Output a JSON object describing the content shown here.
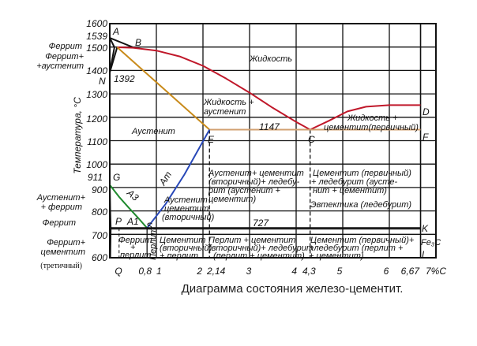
{
  "caption": "Диаграмма состояния железо-цементит.",
  "y_axis_label": "Температура, °С",
  "y_ticks": [
    "1600",
    "1539",
    "1500",
    "1400",
    "1300",
    "1200",
    "1100",
    "1000",
    "911",
    "900",
    "800",
    "700",
    "600"
  ],
  "x_ticks": [
    "Q",
    "0,8",
    "1",
    "2",
    "2,14",
    "3",
    "4",
    "4,3",
    "5",
    "6",
    "6,67",
    "7%C"
  ],
  "points": {
    "A": "A",
    "B": "B",
    "N": "N",
    "E": "E",
    "C": "C",
    "D": "D",
    "F": "F",
    "G": "G",
    "P": "P",
    "S": "S",
    "K": "K",
    "L": "L",
    "Fe3C": "Fe₃C"
  },
  "temps": {
    "t1392": "1392",
    "t1147": "1147",
    "t727": "727"
  },
  "lines": {
    "A3": "A3",
    "A1": "A1",
    "Am": "Am"
  },
  "left_labels": {
    "ferrite_top": "Феррит",
    "ferrite_aust_1": "Феррит+",
    "ferrite_aust_2": "+аустенит",
    "aust_ferr_1": "Аустенит+",
    "aust_ferr_2": "+ феррит",
    "ferrite": "Феррит",
    "ferr_cem_1": "Феррит+",
    "ferr_cem_2": "цементит",
    "ferr_cem_3": "(третичный)"
  },
  "regions": {
    "liquid": "Жидкость",
    "liq_aust_1": "Жидкость +",
    "liq_aust_2": "аустенит",
    "austenite": "Аустенит",
    "liq_cem_1": "Жидкость +",
    "liq_cem_2": "цементит(первичный)",
    "aust_cem2_1": "Аустенит",
    "aust_cem2_2": "цементит",
    "aust_cem2_3": "(вторичный)",
    "aust_led_1": "Аустенит+ цементит",
    "aust_led_2": "(вторичный)+ ледебу-",
    "aust_led_3": "рит (аустенит +",
    "aust_led_4": "цементит)",
    "cem1_led_1": "Цементит (первичный)",
    "cem1_led_2": "+ ледебурит (аусте-",
    "cem1_led_3": "нит + цементит)",
    "eutectic": "Эвтектика (ледебурит)",
    "ferr_perl_1": "Феррит",
    "ferr_perl_2": "+",
    "ferr_perl_3": "перлит",
    "pearlite": "Перлит",
    "cem2_perl_1": "Цементит",
    "cem2_perl_2": "(вторичный)",
    "cem2_perl_3": "+ перлит",
    "perl_led_1": "Перлит + цементит",
    "perl_led_2": "(вторичный)+ ледебурит",
    "perl_led_3": "(перлит + цементит)",
    "cem1_ledp_1": "Цементит (первичный)+",
    "cem1_ledp_2": "+ледебурит (перлит +",
    "cem1_ledp_3": "+ цементит)"
  },
  "chart_data": {
    "type": "phase-diagram",
    "xlabel": "%C",
    "ylabel": "Температура, °С",
    "xlim": [
      0,
      7
    ],
    "ylim": [
      600,
      1600
    ],
    "grid": true,
    "curves": [
      {
        "id": "AB",
        "color": "#111111",
        "pts": [
          [
            0,
            1539
          ],
          [
            0.5,
            1499
          ]
        ]
      },
      {
        "id": "AH",
        "color": "#111111",
        "pts": [
          [
            0,
            1539
          ],
          [
            0.1,
            1499
          ]
        ]
      },
      {
        "id": "HN",
        "color": "#111111",
        "pts": [
          [
            0.1,
            1499
          ],
          [
            0,
            1392
          ]
        ]
      },
      {
        "id": "JN",
        "color": "#111111",
        "pts": [
          [
            0.16,
            1499
          ],
          [
            0,
            1392
          ]
        ]
      },
      {
        "id": "BC",
        "color": "#c0182a",
        "pts": [
          [
            0.16,
            1499
          ],
          [
            0.5,
            1497
          ],
          [
            1,
            1485
          ],
          [
            1.5,
            1460
          ],
          [
            2,
            1420
          ],
          [
            2.5,
            1365
          ],
          [
            3,
            1305
          ],
          [
            3.5,
            1240
          ],
          [
            4,
            1180
          ],
          [
            4.3,
            1147
          ]
        ]
      },
      {
        "id": "CD",
        "color": "#c0182a",
        "pts": [
          [
            4.3,
            1147
          ],
          [
            4.7,
            1185
          ],
          [
            5.1,
            1225
          ],
          [
            5.5,
            1245
          ],
          [
            6,
            1252
          ],
          [
            6.67,
            1252
          ]
        ]
      },
      {
        "id": "JE",
        "color": "#c88a1a",
        "pts": [
          [
            0.16,
            1499
          ],
          [
            2.14,
            1147
          ]
        ]
      },
      {
        "id": "EF",
        "color": "#d2a070",
        "pts": [
          [
            2.14,
            1147
          ],
          [
            6.67,
            1147
          ]
        ]
      },
      {
        "id": "GS",
        "color": "#1f8a2e",
        "pts": [
          [
            0,
            911
          ],
          [
            0.2,
            860
          ],
          [
            0.4,
            815
          ],
          [
            0.6,
            772
          ],
          [
            0.8,
            727
          ]
        ]
      },
      {
        "id": "SE",
        "color": "#2848b8",
        "pts": [
          [
            0.8,
            727
          ],
          [
            1.2,
            830
          ],
          [
            1.6,
            955
          ],
          [
            2.14,
            1147
          ]
        ]
      },
      {
        "id": "GP",
        "color": "#111111",
        "pts": [
          [
            0,
            911
          ],
          [
            0.01,
            800
          ],
          [
            0.02,
            727
          ]
        ]
      },
      {
        "id": "PQ",
        "color": "#111111",
        "pts": [
          [
            0.02,
            727
          ],
          [
            0.01,
            600
          ]
        ]
      },
      {
        "id": "PSK",
        "color": "#111111",
        "pts": [
          [
            0.02,
            727
          ],
          [
            6.67,
            727
          ]
        ]
      }
    ]
  }
}
